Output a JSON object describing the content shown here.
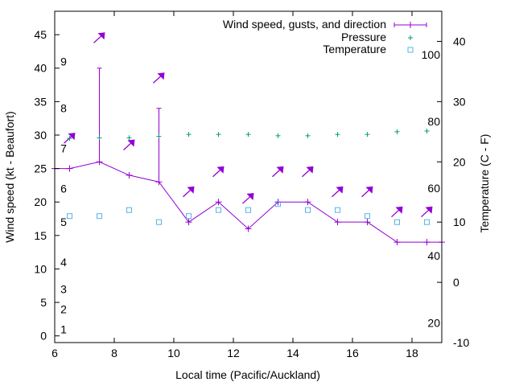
{
  "colors": {
    "wind": "#9400d3",
    "pressure": "#009e73",
    "temperature": "#56b4e9",
    "axis": "#000000"
  },
  "chart_data": {
    "type": "line",
    "title": "",
    "xlabel": "Local time (Pacific/Auckland)",
    "ylabel": "Wind speed (kt - Beaufort)",
    "y2label": "Temperature (C - F)",
    "xlim": [
      6,
      19
    ],
    "ylim": [
      -1,
      48.5
    ],
    "y2lim": [
      -10,
      45
    ],
    "x_ticks": [
      6,
      8,
      10,
      12,
      14,
      16,
      18
    ],
    "y_ticks": [
      0,
      5,
      10,
      15,
      20,
      25,
      30,
      35,
      40,
      45
    ],
    "y2_ticks": [
      -10,
      0,
      10,
      20,
      30,
      40
    ],
    "beaufort_labels": [
      {
        "label": "1",
        "kt": 1
      },
      {
        "label": "2",
        "kt": 4
      },
      {
        "label": "3",
        "kt": 7
      },
      {
        "label": "4",
        "kt": 11
      },
      {
        "label": "5",
        "kt": 17
      },
      {
        "label": "6",
        "kt": 22
      },
      {
        "label": "7",
        "kt": 28
      },
      {
        "label": "8",
        "kt": 34
      },
      {
        "label": "9",
        "kt": 41
      }
    ],
    "fahrenheit_labels": [
      {
        "label": "20",
        "c": -6.7
      },
      {
        "label": "40",
        "c": 4.4
      },
      {
        "label": "60",
        "c": 15.6
      },
      {
        "label": "80",
        "c": 26.7
      },
      {
        "label": "100",
        "c": 37.8
      }
    ],
    "legend": [
      {
        "key": "wind",
        "label": "Wind speed, gusts, and direction"
      },
      {
        "key": "pressure",
        "label": "Pressure"
      },
      {
        "key": "temperature",
        "label": "Temperature"
      }
    ],
    "series": [
      {
        "name": "Wind speed, gusts, and direction",
        "axis": "y",
        "x": [
          6.0,
          6.5,
          7.5,
          8.5,
          9.5,
          10.5,
          11.5,
          12.5,
          13.5,
          14.5,
          15.5,
          16.5,
          17.5,
          18.5,
          19.0
        ],
        "values": [
          25,
          25,
          26,
          24,
          23,
          17,
          20,
          16,
          20,
          20,
          17,
          17,
          14,
          14,
          14
        ],
        "gust_x": [
          7.5,
          9.5
        ],
        "gust_values": [
          40,
          34
        ],
        "direction_arrows": [
          {
            "x": 6.5,
            "y": 29.5,
            "dir": "ne"
          },
          {
            "x": 7.5,
            "y": 44.5,
            "dir": "ne"
          },
          {
            "x": 8.5,
            "y": 28.5,
            "dir": "ne"
          },
          {
            "x": 9.5,
            "y": 38.5,
            "dir": "ne"
          },
          {
            "x": 10.5,
            "y": 21.5,
            "dir": "ne"
          },
          {
            "x": 11.5,
            "y": 24.5,
            "dir": "ne"
          },
          {
            "x": 12.5,
            "y": 20.5,
            "dir": "ne"
          },
          {
            "x": 13.5,
            "y": 24.5,
            "dir": "ne"
          },
          {
            "x": 14.5,
            "y": 24.5,
            "dir": "ne"
          },
          {
            "x": 15.5,
            "y": 21.5,
            "dir": "ne"
          },
          {
            "x": 16.5,
            "y": 21.5,
            "dir": "ne"
          },
          {
            "x": 17.5,
            "y": 18.5,
            "dir": "ne"
          },
          {
            "x": 18.5,
            "y": 18.5,
            "dir": "ne"
          }
        ]
      },
      {
        "name": "Pressure",
        "axis": "y",
        "x": [
          6.5,
          7.5,
          8.5,
          9.5,
          10.5,
          11.5,
          12.5,
          13.5,
          14.5,
          15.5,
          16.5,
          17.5,
          18.5
        ],
        "values": [
          29.5,
          29.6,
          29.6,
          29.8,
          30.1,
          30.1,
          30.1,
          29.9,
          29.9,
          30.1,
          30.1,
          30.5,
          30.6
        ]
      },
      {
        "name": "Temperature",
        "axis": "y2",
        "x": [
          6.5,
          7.5,
          8.5,
          9.5,
          10.5,
          11.5,
          12.5,
          13.5,
          14.5,
          15.5,
          16.5,
          17.5,
          18.5
        ],
        "values": [
          11,
          11,
          12,
          10,
          11,
          12,
          12,
          13,
          12,
          12,
          11,
          10,
          10
        ]
      }
    ]
  }
}
